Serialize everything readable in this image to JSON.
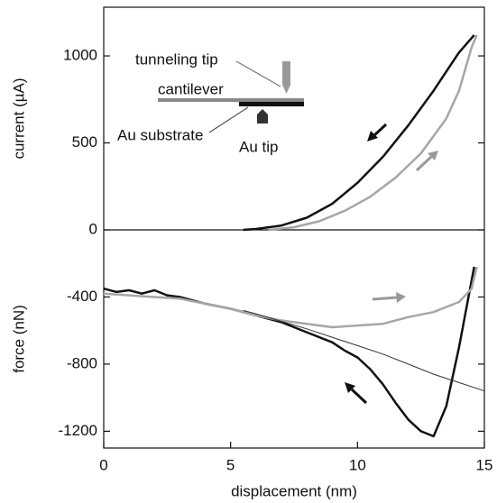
{
  "chart_data": [
    {
      "type": "line",
      "ylabel": "current (µA)",
      "xlim": [
        0,
        15
      ],
      "ylim": [
        0,
        1280
      ],
      "yticks": [
        0,
        500,
        1000
      ],
      "annotations": [
        "tunneling tip",
        "cantilever",
        "Au substrate",
        "Au tip"
      ],
      "series": [
        {
          "color": "#111111",
          "x": [
            5.5,
            6,
            7,
            8,
            9,
            10,
            11,
            12,
            13,
            14,
            14.6
          ],
          "values": [
            0,
            5,
            25,
            70,
            150,
            270,
            420,
            600,
            800,
            1020,
            1120
          ]
        },
        {
          "color": "#a6a6a6",
          "x": [
            6.5,
            7.5,
            8.5,
            9.5,
            10.5,
            11.5,
            12.5,
            13.5,
            14,
            14.5,
            14.7
          ],
          "values": [
            0,
            15,
            50,
            110,
            190,
            300,
            440,
            640,
            800,
            1050,
            1120
          ]
        }
      ]
    },
    {
      "type": "line",
      "ylabel": "force (nN)",
      "xlabel": "displacement (nm)",
      "xlim": [
        0,
        15
      ],
      "xticks": [
        0,
        5,
        10,
        15
      ],
      "ylim": [
        -1300,
        0
      ],
      "yticks": [
        -400,
        -800,
        -1200
      ],
      "series": [
        {
          "color": "#111111",
          "x": [
            0,
            0.5,
            1,
            1.5,
            2,
            2.5,
            3,
            4,
            5,
            6,
            7,
            8,
            9,
            9.5,
            10,
            10.5,
            11,
            11.5,
            12,
            12.5,
            13,
            13.5,
            14,
            14.5,
            14.6
          ],
          "values": [
            -350,
            -370,
            -360,
            -380,
            -360,
            -390,
            -400,
            -440,
            -470,
            -510,
            -550,
            -610,
            -670,
            -720,
            -760,
            -830,
            -920,
            -1030,
            -1130,
            -1200,
            -1230,
            -1050,
            -700,
            -300,
            -220
          ]
        },
        {
          "color": "#a6a6a6",
          "x": [
            0,
            1,
            2,
            3,
            4,
            5,
            6,
            7,
            8,
            9,
            10,
            11,
            12,
            13,
            14,
            14.5,
            14.7
          ],
          "values": [
            -380,
            -390,
            -400,
            -410,
            -440,
            -470,
            -510,
            -540,
            -560,
            -580,
            -570,
            -560,
            -520,
            -490,
            -430,
            -350,
            -220
          ]
        },
        {
          "color": "#333333",
          "x": [
            5.5,
            6,
            7,
            8,
            9,
            10,
            11,
            12,
            13,
            14,
            15
          ],
          "values": [
            -480,
            -500,
            -545,
            -590,
            -640,
            -690,
            -740,
            -800,
            -860,
            -910,
            -960
          ]
        }
      ]
    }
  ]
}
